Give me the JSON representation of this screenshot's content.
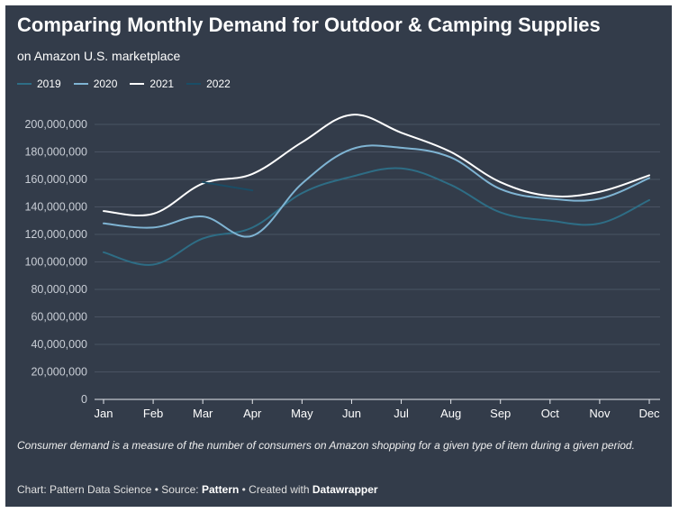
{
  "title": "Comparing Monthly Demand for Outdoor & Camping Supplies",
  "subtitle": "on Amazon U.S. marketplace",
  "note": "Consumer demand is a measure of the number of consumers on Amazon shopping for a given type of item during a given period.",
  "credit": {
    "prefix": "Chart: Pattern Data Science • Source: ",
    "source": "Pattern",
    "middle": " • Created with ",
    "tool": "Datawrapper"
  },
  "colors": {
    "background": "#333c4a",
    "grid": "#4a5362",
    "axis_text": "#c9ced6"
  },
  "chart_data": {
    "type": "line",
    "title": "Comparing Monthly Demand for Outdoor & Camping Supplies",
    "xlabel": "",
    "ylabel": "",
    "categories": [
      "Jan",
      "Feb",
      "Mar",
      "Apr",
      "May",
      "Jun",
      "Jul",
      "Aug",
      "Sep",
      "Oct",
      "Nov",
      "Dec"
    ],
    "ylim": [
      0,
      200000000
    ],
    "yticks": [
      0,
      20000000,
      40000000,
      60000000,
      80000000,
      100000000,
      120000000,
      140000000,
      160000000,
      180000000,
      200000000
    ],
    "ytick_labels": [
      "0",
      "20,000,000",
      "40,000,000",
      "60,000,000",
      "80,000,000",
      "100,000,000",
      "120,000,000",
      "140,000,000",
      "160,000,000",
      "180,000,000",
      "200,000,000"
    ],
    "legend_position": "top-left",
    "series": [
      {
        "name": "2019",
        "color": "#2e6d85",
        "values": [
          107000000,
          98000000,
          117000000,
          125000000,
          150000000,
          162000000,
          168000000,
          156000000,
          136000000,
          130000000,
          128000000,
          145000000
        ]
      },
      {
        "name": "2020",
        "color": "#7fb4d3",
        "values": [
          128000000,
          125000000,
          133000000,
          119000000,
          157000000,
          182000000,
          183000000,
          176000000,
          153000000,
          146000000,
          146000000,
          161000000
        ]
      },
      {
        "name": "2021",
        "color": "#ffffff",
        "values": [
          137000000,
          135000000,
          157000000,
          164000000,
          187000000,
          207000000,
          194000000,
          180000000,
          158000000,
          148000000,
          151000000,
          163000000
        ]
      },
      {
        "name": "2022",
        "color": "#1a4d66",
        "values": [
          null,
          null,
          158000000,
          152000000,
          null,
          null,
          null,
          null,
          null,
          null,
          null,
          null
        ]
      }
    ]
  }
}
